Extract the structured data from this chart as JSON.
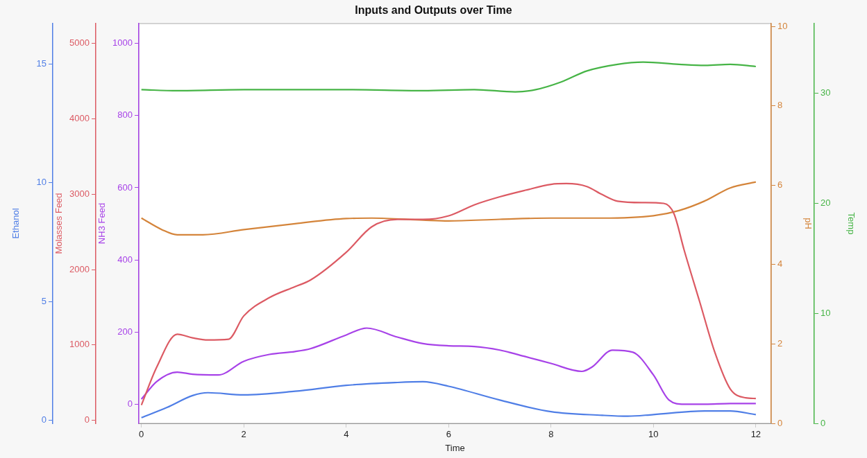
{
  "chart_data": [
    {
      "type": "line",
      "title": "Inputs and Outputs over Time",
      "xlabel": "Time",
      "ylabel": "NH3 Feed",
      "y2label": "pH",
      "xlim": [
        -0.05,
        12.3
      ],
      "xticks": [
        0,
        2,
        4,
        6,
        8,
        10,
        12
      ],
      "ylim": [
        -53,
        1055
      ],
      "yticks": [
        0,
        200,
        400,
        600,
        800,
        1000
      ],
      "y2lim": [
        0,
        10.07
      ],
      "y2ticks": [
        0,
        2,
        4,
        6,
        8,
        10
      ],
      "grid": false,
      "marker": "none",
      "line_style": "solid",
      "series": [
        {
          "axis": "y2",
          "color": "#d4843a",
          "x": [
            0,
            0.4,
            0.7,
            1.2,
            2,
            3,
            4,
            4.5,
            5.5,
            6,
            7,
            8,
            9,
            10,
            10.5,
            11,
            11.5,
            12
          ],
          "values": [
            5.17,
            4.88,
            4.75,
            4.75,
            4.88,
            5.03,
            5.16,
            5.17,
            5.12,
            5.1,
            5.14,
            5.17,
            5.17,
            5.23,
            5.36,
            5.6,
            5.93,
            6.08
          ]
        },
        {
          "color": "#a742e8",
          "x": [
            0,
            0.3,
            0.7,
            1,
            1.5,
            2,
            2.5,
            3,
            3.3,
            4,
            4.4,
            5,
            5.5,
            6,
            6.5,
            7,
            7.5,
            8,
            8.6,
            8.8,
            9.2,
            9.6,
            10,
            10.3,
            10.6,
            11,
            11.5,
            12
          ],
          "values": [
            14,
            63,
            89,
            83,
            81,
            119,
            138,
            146,
            154,
            192,
            211,
            186,
            168,
            162,
            160,
            150,
            132,
            113,
            91,
            103,
            150,
            144,
            81,
            12,
            0,
            0,
            2,
            2
          ]
        }
      ]
    },
    {
      "type": "line",
      "ylabel": "Molasses Feed",
      "y2label": "Temp",
      "tick_labels": "y",
      "xlim": [
        -0.05,
        12.3
      ],
      "xticks": [
        0,
        2,
        4,
        6,
        8,
        10,
        12
      ],
      "ylim": [
        -39,
        5262
      ],
      "yticks": [
        0,
        1000,
        2000,
        3000,
        4000,
        5000
      ],
      "y2lim": [
        0,
        36.3
      ],
      "y2ticks": [
        0,
        10,
        20,
        30
      ],
      "grid": false,
      "marker": "none",
      "line_style": "solid",
      "series": [
        {
          "axis": "y2",
          "color": "#46b446",
          "x": [
            0,
            0.7,
            2,
            4,
            5.5,
            6.5,
            7.3,
            7.7,
            8.2,
            8.7,
            9.3,
            9.8,
            10.5,
            11,
            11.5,
            12
          ],
          "values": [
            30.3,
            30.2,
            30.3,
            30.3,
            30.2,
            30.3,
            30.1,
            30.3,
            31,
            32,
            32.6,
            32.8,
            32.6,
            32.5,
            32.6,
            32.4
          ]
        },
        {
          "color": "#dc5a63",
          "x": [
            0,
            0.3,
            0.7,
            1,
            1.3,
            1.7,
            2,
            2.5,
            3,
            3.3,
            4,
            4.5,
            5,
            5.5,
            6,
            6.5,
            7,
            7.5,
            8,
            8.3,
            8.7,
            9,
            9.3,
            9.8,
            10.2,
            10.4,
            10.6,
            10.9,
            11.2,
            11.5,
            11.8,
            12
          ],
          "values": [
            203,
            707,
            1143,
            1095,
            1066,
            1076,
            1386,
            1628,
            1773,
            1860,
            2229,
            2568,
            2665,
            2665,
            2713,
            2858,
            2965,
            3052,
            3130,
            3140,
            3101,
            2994,
            2907,
            2888,
            2878,
            2742,
            2258,
            1580,
            901,
            417,
            300,
            291
          ]
        }
      ]
    },
    {
      "type": "line",
      "ylabel": "Ethanol",
      "tick_labels": "y",
      "xlim": [
        -0.05,
        12.3
      ],
      "xticks": [
        0,
        2,
        4,
        6,
        8,
        10,
        12
      ],
      "ylim": [
        -0.12,
        16.7
      ],
      "yticks": [
        0,
        5,
        10,
        15
      ],
      "grid": false,
      "marker": "none",
      "line_style": "solid",
      "series": [
        {
          "color": "#4f7ee6",
          "x": [
            0,
            0.5,
            1,
            1.3,
            2,
            3,
            4,
            5,
            5.5,
            6,
            7,
            8,
            9,
            9.5,
            10,
            11,
            11.5,
            12
          ],
          "values": [
            0.12,
            0.55,
            1.05,
            1.17,
            1.08,
            1.23,
            1.48,
            1.6,
            1.63,
            1.44,
            0.86,
            0.37,
            0.22,
            0.18,
            0.25,
            0.4,
            0.4,
            0.25
          ]
        }
      ]
    }
  ]
}
